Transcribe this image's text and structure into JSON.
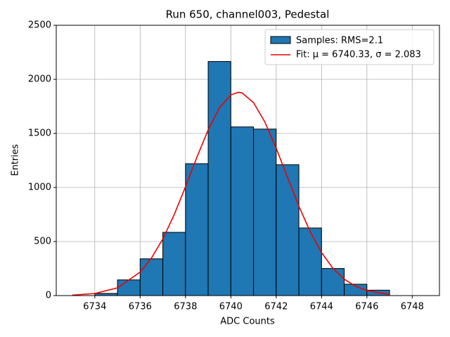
{
  "chart_data": {
    "type": "histogram",
    "title": "Run 650, channel003, Pedestal",
    "x_label": "ADC Counts",
    "y_label": "Entries",
    "bins": [
      6734,
      6735,
      6736,
      6737,
      6738,
      6739,
      6740,
      6741,
      6742,
      6743,
      6744,
      6745,
      6746,
      6747
    ],
    "series": [
      {
        "name": "Samples: RMS=2.1",
        "color": "#1f77b4",
        "values": [
          20,
          145,
          340,
          585,
          1220,
          2165,
          1560,
          1540,
          1210,
          625,
          250,
          105,
          50
        ]
      },
      {
        "name": "Fit: μ = 6740.33, σ = 2.083",
        "color": "#ee0000",
        "x": [
          6733,
          6734,
          6735,
          6736,
          6736.5,
          6737,
          6737.5,
          6738,
          6738.5,
          6739,
          6739.5,
          6740,
          6740.33,
          6740.5,
          6741,
          6741.5,
          6742,
          6742.5,
          6743,
          6743.5,
          6744,
          6744.5,
          6745,
          6745.5,
          6746,
          6747
        ],
        "values": [
          4,
          19,
          71,
          217,
          347,
          524,
          747,
          1006,
          1278,
          1533,
          1737,
          1856,
          1880,
          1874,
          1785,
          1606,
          1363,
          1093,
          827,
          591,
          398,
          253,
          152,
          86,
          46,
          11
        ]
      }
    ],
    "xlim": [
      6732.3,
      6749.2
    ],
    "ylim": [
      0,
      2500
    ],
    "xticks": [
      6734,
      6736,
      6738,
      6740,
      6742,
      6744,
      6746,
      6748
    ],
    "yticks": [
      0,
      500,
      1000,
      1500,
      2000,
      2500
    ],
    "grid": true,
    "legend": "upper right"
  }
}
